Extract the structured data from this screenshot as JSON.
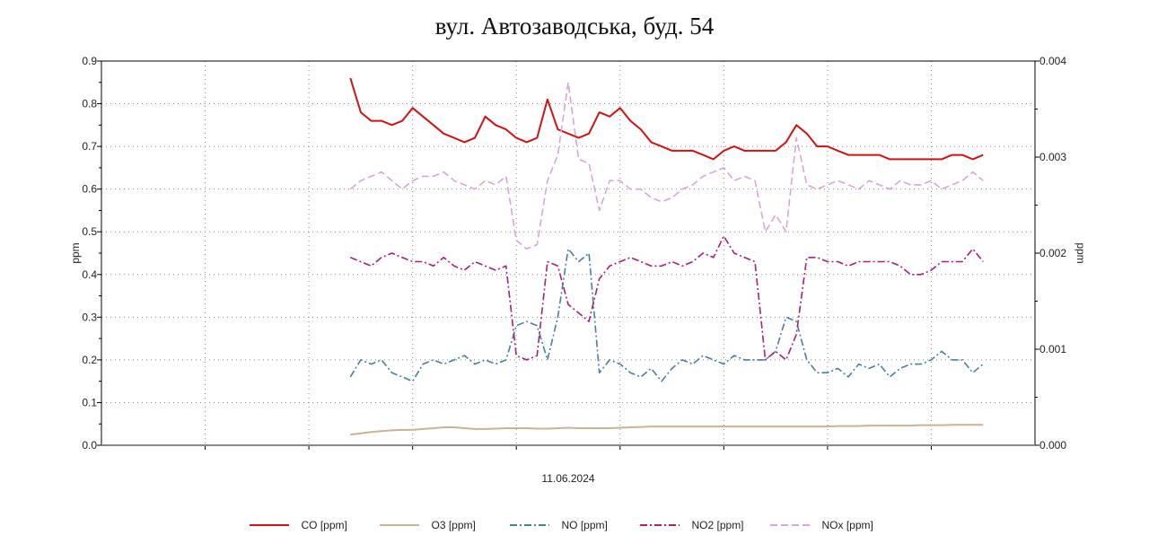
{
  "chart_data": {
    "type": "line",
    "title": "вул. Автозаводська, буд. 54",
    "xlabel": "11.06.2024",
    "ylabel": "ppm",
    "y2label": "ppm",
    "ylim": [
      0,
      0.9
    ],
    "y2lim": [
      0,
      0.004
    ],
    "yticks": [
      "0.0",
      "0.1",
      "0.2",
      "0.3",
      "0.4",
      "0.5",
      "0.6",
      "0.7",
      "0.8",
      "0.9"
    ],
    "y2ticks": [
      "0.000",
      "0.001",
      "0.002",
      "0.003",
      "0.004"
    ],
    "xlim": [
      0,
      9
    ],
    "grid": true,
    "legend": "bottom",
    "x": [
      2.4,
      2.5,
      2.6,
      2.7,
      2.8,
      2.9,
      3.0,
      3.1,
      3.2,
      3.3,
      3.4,
      3.5,
      3.6,
      3.7,
      3.8,
      3.9,
      4.0,
      4.1,
      4.2,
      4.3,
      4.4,
      4.5,
      4.6,
      4.7,
      4.8,
      4.9,
      5.0,
      5.1,
      5.2,
      5.3,
      5.4,
      5.5,
      5.6,
      5.7,
      5.8,
      5.9,
      6.0,
      6.1,
      6.2,
      6.3,
      6.4,
      6.5,
      6.6,
      6.7,
      6.8,
      6.9,
      7.0,
      7.1,
      7.2,
      7.3,
      7.4,
      7.5,
      7.6,
      7.7,
      7.8,
      7.9,
      8.0,
      8.1,
      8.2,
      8.3,
      8.4,
      8.5
    ],
    "series": [
      {
        "name": "CO [ppm]",
        "color": "#cc1414",
        "dash": "",
        "values": [
          0.86,
          0.78,
          0.76,
          0.76,
          0.75,
          0.76,
          0.79,
          0.77,
          0.75,
          0.73,
          0.72,
          0.71,
          0.72,
          0.77,
          0.75,
          0.74,
          0.72,
          0.71,
          0.72,
          0.81,
          0.74,
          0.73,
          0.72,
          0.73,
          0.78,
          0.77,
          0.79,
          0.76,
          0.74,
          0.71,
          0.7,
          0.69,
          0.69,
          0.69,
          0.68,
          0.67,
          0.69,
          0.7,
          0.69,
          0.69,
          0.69,
          0.69,
          0.71,
          0.75,
          0.73,
          0.7,
          0.7,
          0.69,
          0.68,
          0.68,
          0.68,
          0.68,
          0.67,
          0.67,
          0.67,
          0.67,
          0.67,
          0.67,
          0.68,
          0.68,
          0.67,
          0.68
        ]
      },
      {
        "name": "O3 [ppm]",
        "color": "#c9b394",
        "dash": "",
        "values": [
          0.025,
          0.028,
          0.031,
          0.033,
          0.035,
          0.036,
          0.036,
          0.038,
          0.04,
          0.042,
          0.042,
          0.04,
          0.038,
          0.038,
          0.039,
          0.04,
          0.04,
          0.04,
          0.039,
          0.039,
          0.04,
          0.041,
          0.04,
          0.04,
          0.04,
          0.04,
          0.041,
          0.042,
          0.043,
          0.044,
          0.044,
          0.044,
          0.044,
          0.044,
          0.044,
          0.044,
          0.044,
          0.044,
          0.044,
          0.044,
          0.044,
          0.044,
          0.044,
          0.044,
          0.044,
          0.044,
          0.044,
          0.045,
          0.045,
          0.045,
          0.046,
          0.046,
          0.046,
          0.046,
          0.046,
          0.047,
          0.047,
          0.047,
          0.048,
          0.048,
          0.048,
          0.048
        ]
      },
      {
        "name": "NO [ppm]",
        "color": "#4a7f9e",
        "dash": "8,3,2,3",
        "values": [
          0.16,
          0.2,
          0.19,
          0.2,
          0.17,
          0.16,
          0.15,
          0.19,
          0.2,
          0.19,
          0.2,
          0.21,
          0.19,
          0.2,
          0.19,
          0.2,
          0.28,
          0.29,
          0.28,
          0.2,
          0.3,
          0.46,
          0.43,
          0.45,
          0.17,
          0.2,
          0.19,
          0.17,
          0.16,
          0.18,
          0.15,
          0.18,
          0.2,
          0.19,
          0.21,
          0.2,
          0.19,
          0.21,
          0.2,
          0.2,
          0.2,
          0.22,
          0.3,
          0.29,
          0.2,
          0.17,
          0.17,
          0.18,
          0.16,
          0.19,
          0.18,
          0.19,
          0.16,
          0.18,
          0.19,
          0.19,
          0.2,
          0.22,
          0.2,
          0.2,
          0.17,
          0.19
        ]
      },
      {
        "name": "NO2 [ppm]",
        "color": "#a3207c",
        "dash": "8,3,2,3",
        "values": [
          0.44,
          0.43,
          0.42,
          0.44,
          0.45,
          0.44,
          0.43,
          0.43,
          0.42,
          0.44,
          0.42,
          0.41,
          0.43,
          0.42,
          0.41,
          0.42,
          0.21,
          0.2,
          0.21,
          0.43,
          0.42,
          0.33,
          0.31,
          0.29,
          0.39,
          0.42,
          0.43,
          0.44,
          0.43,
          0.42,
          0.42,
          0.43,
          0.42,
          0.43,
          0.45,
          0.44,
          0.49,
          0.45,
          0.44,
          0.43,
          0.2,
          0.22,
          0.2,
          0.26,
          0.44,
          0.44,
          0.43,
          0.43,
          0.42,
          0.43,
          0.43,
          0.43,
          0.43,
          0.42,
          0.4,
          0.4,
          0.41,
          0.43,
          0.43,
          0.43,
          0.46,
          0.43
        ]
      },
      {
        "name": "NOx [ppm]",
        "color": "#d8a6d8",
        "dash": "8,4",
        "values": [
          0.6,
          0.62,
          0.63,
          0.64,
          0.62,
          0.6,
          0.62,
          0.63,
          0.63,
          0.64,
          0.62,
          0.61,
          0.6,
          0.62,
          0.61,
          0.63,
          0.48,
          0.46,
          0.47,
          0.62,
          0.68,
          0.85,
          0.67,
          0.66,
          0.55,
          0.62,
          0.62,
          0.6,
          0.6,
          0.58,
          0.57,
          0.58,
          0.6,
          0.61,
          0.63,
          0.64,
          0.65,
          0.62,
          0.63,
          0.62,
          0.5,
          0.54,
          0.5,
          0.72,
          0.61,
          0.6,
          0.61,
          0.62,
          0.61,
          0.6,
          0.62,
          0.61,
          0.6,
          0.62,
          0.61,
          0.61,
          0.62,
          0.6,
          0.61,
          0.62,
          0.64,
          0.62
        ]
      }
    ]
  }
}
